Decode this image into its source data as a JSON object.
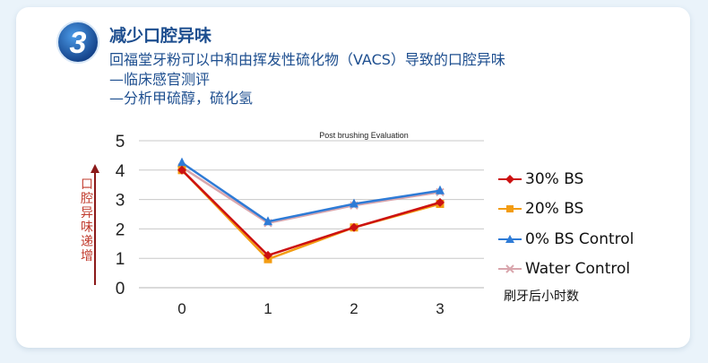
{
  "header": {
    "number": "3",
    "title": "减少口腔异味",
    "lines": [
      "回福堂牙粉可以中和由挥发性硫化物（VACS）导致的口腔异味",
      "—临床感官测评",
      "—分析甲硫醇，硫化氢"
    ]
  },
  "colors": {
    "header_text": "#1d4e8f",
    "badge": "#1a5fb4",
    "ylabel": "#c0392b"
  },
  "chart_data": {
    "type": "line",
    "title": "Post brushing Evaluation",
    "xlabel": "刷牙后小时数",
    "ylabel": "口腔异味递增",
    "x": [
      0,
      1,
      2,
      3
    ],
    "x_ticks": [
      "0",
      "1",
      "2",
      "3"
    ],
    "y_ticks": [
      "0",
      "1",
      "2",
      "3",
      "4",
      "5"
    ],
    "ylim": [
      0,
      5
    ],
    "grid": true,
    "legend": "right",
    "series": [
      {
        "name": "30% BS",
        "values": [
          4.0,
          1.1,
          2.05,
          2.9
        ],
        "color": "#cc1111",
        "marker": "diamond"
      },
      {
        "name": "20% BS",
        "values": [
          4.0,
          0.97,
          2.05,
          2.85
        ],
        "color": "#f39c12",
        "marker": "square"
      },
      {
        "name": "0% BS Control",
        "values": [
          4.25,
          2.25,
          2.85,
          3.3
        ],
        "color": "#2e7bd6",
        "marker": "triangle"
      },
      {
        "name": "Water Control",
        "values": [
          4.1,
          2.2,
          2.8,
          3.25
        ],
        "color": "#d9a6ad",
        "marker": "x"
      }
    ]
  }
}
